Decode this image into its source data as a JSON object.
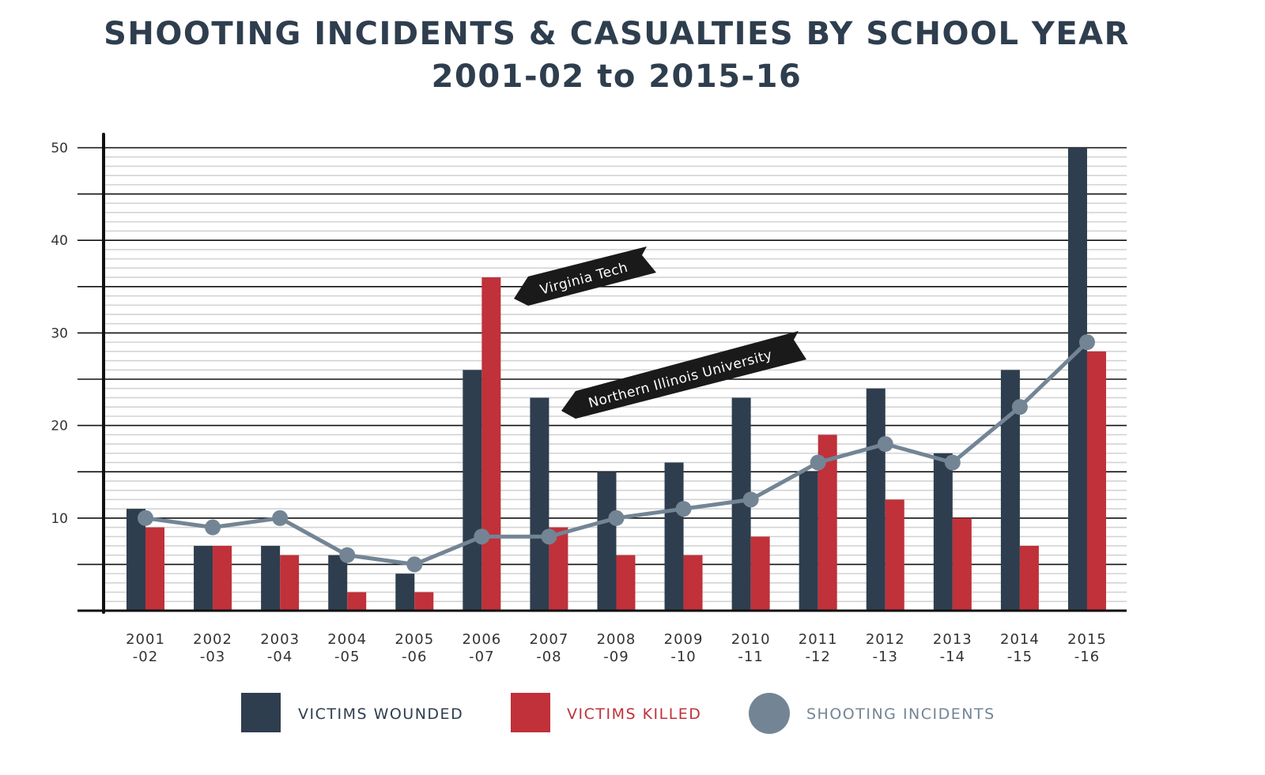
{
  "chart_data": {
    "type": "bar",
    "title": "SHOOTING INCIDENTS & CASUALTIES BY SCHOOL YEAR",
    "subtitle": "2001-02 to 2015-16",
    "categories": [
      [
        "2001",
        "-02"
      ],
      [
        "2002",
        "-03"
      ],
      [
        "2003",
        "-04"
      ],
      [
        "2004",
        "-05"
      ],
      [
        "2005",
        "-06"
      ],
      [
        "2006",
        "-07"
      ],
      [
        "2007",
        "-08"
      ],
      [
        "2008",
        "-09"
      ],
      [
        "2009",
        "-10"
      ],
      [
        "2010",
        "-11"
      ],
      [
        "2011",
        "-12"
      ],
      [
        "2012",
        "-13"
      ],
      [
        "2013",
        "-14"
      ],
      [
        "2014",
        "-15"
      ],
      [
        "2015",
        "-16"
      ]
    ],
    "series": [
      {
        "name": "VICTIMS WOUNDED",
        "type": "bar",
        "color": "#2e3e4e",
        "values": [
          11,
          7,
          7,
          6,
          4,
          26,
          23,
          15,
          16,
          23,
          15,
          24,
          17,
          26,
          50
        ]
      },
      {
        "name": "VICTIMS KILLED",
        "type": "bar",
        "color": "#c0313a",
        "values": [
          9,
          7,
          6,
          2,
          2,
          36,
          9,
          6,
          6,
          8,
          19,
          12,
          10,
          7,
          28
        ]
      },
      {
        "name": "SHOOTING INCIDENTS",
        "type": "line",
        "color": "#738595",
        "values": [
          10,
          9,
          10,
          6,
          5,
          8,
          8,
          10,
          11,
          12,
          16,
          18,
          16,
          22,
          29
        ]
      }
    ],
    "ylim": [
      0,
      50
    ],
    "yticks": [
      10,
      20,
      30,
      40,
      50
    ],
    "grid": {
      "major_every": 5,
      "minor_every": 1
    },
    "legend": "bottom",
    "annotations": [
      {
        "text": "Virginia Tech",
        "category": "2006-07"
      },
      {
        "text": "Northern Illinois University",
        "category": "2007-08"
      }
    ]
  }
}
